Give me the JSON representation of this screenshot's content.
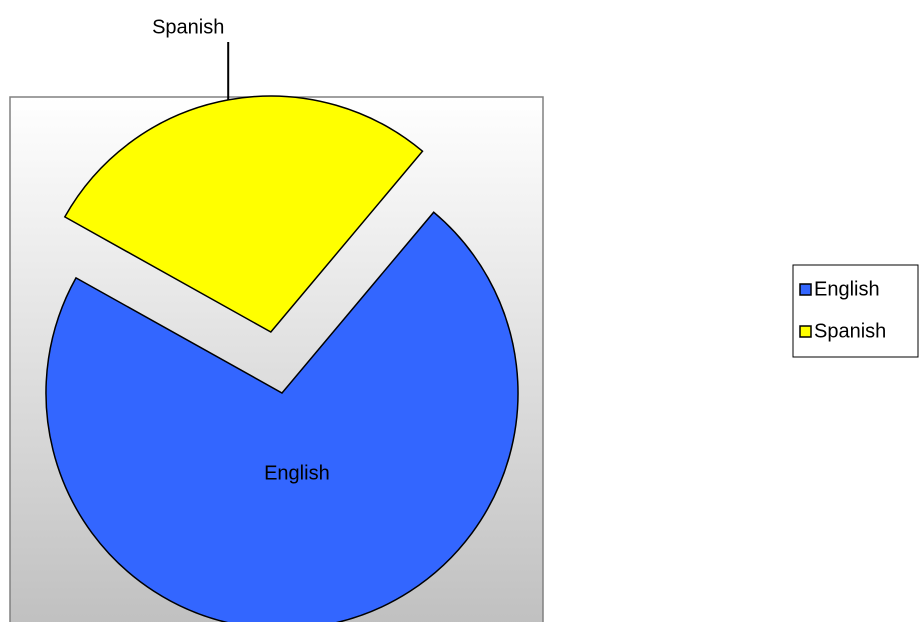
{
  "chart_data": {
    "type": "pie",
    "categories": [
      "English",
      "Spanish"
    ],
    "values": [
      72,
      28
    ],
    "colors": [
      "#3366ff",
      "#ffff00"
    ],
    "legend": "right"
  }
}
